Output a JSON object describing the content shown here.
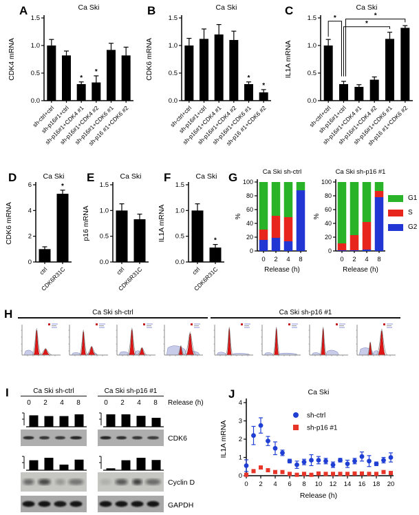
{
  "panels": {
    "A": {
      "letter": "A"
    },
    "B": {
      "letter": "B"
    },
    "C": {
      "letter": "C"
    },
    "D": {
      "letter": "D"
    },
    "E": {
      "letter": "E"
    },
    "F": {
      "letter": "F"
    },
    "G": {
      "letter": "G",
      "legend": [
        {
          "label": "G1",
          "color": "#29b329"
        },
        {
          "label": "S",
          "color": "#e8251d"
        },
        {
          "label": "G2",
          "color": "#2236d4"
        }
      ]
    },
    "H": {
      "letter": "H",
      "groups": [
        {
          "title": "Ca Ski sh-ctrl",
          "plots": [
            {
              "lav": [
                [
                  0.02,
                  0.3,
                  0.2
                ]
              ],
              "peaks": [
                [
                  0.37,
                  0.09,
                  0.9
                ],
                [
                  0.62,
                  0.14,
                  0.22
                ]
              ]
            },
            {
              "lav": [
                [
                  0.02,
                  0.3,
                  0.1
                ],
                [
                  0.45,
                  0.75,
                  0.1
                ]
              ],
              "peaks": [
                [
                  0.35,
                  0.08,
                  0.85
                ],
                [
                  0.58,
                  0.12,
                  0.3
                ]
              ]
            },
            {
              "lav": [
                [
                  0.02,
                  0.32,
                  0.14
                ],
                [
                  0.45,
                  0.66,
                  0.18
                ]
              ],
              "peaks": [
                [
                  0.38,
                  0.09,
                  0.92
                ],
                [
                  0.66,
                  0.11,
                  0.26
                ]
              ]
            },
            {
              "lav": [
                [
                  0.02,
                  0.58,
                  0.38
                ],
                [
                  0.58,
                  0.95,
                  0.16
                ]
              ],
              "peaks": [
                [
                  0.42,
                  0.07,
                  0.32
                ],
                [
                  0.68,
                  0.12,
                  0.78
                ]
              ]
            }
          ]
        },
        {
          "title": "Ca Ski sh-p16 #1",
          "plots": [
            {
              "lav": [
                [
                  0.02,
                  0.3,
                  0.12
                ],
                [
                  0.45,
                  0.95,
                  0.07
                ]
              ],
              "peaks": [
                [
                  0.37,
                  0.07,
                  0.95
                ]
              ]
            },
            {
              "lav": [
                [
                  0.02,
                  0.28,
                  0.1
                ],
                [
                  0.42,
                  0.95,
                  0.08
                ]
              ],
              "peaks": [
                [
                  0.36,
                  0.07,
                  0.95
                ]
              ]
            },
            {
              "lav": [
                [
                  0.02,
                  0.28,
                  0.1
                ],
                [
                  0.42,
                  0.78,
                  0.2
                ]
              ],
              "peaks": [
                [
                  0.34,
                  0.07,
                  0.95
                ]
              ]
            },
            {
              "lav": [
                [
                  0.02,
                  0.42,
                  0.3
                ],
                [
                  0.4,
                  0.62,
                  0.18
                ]
              ],
              "peaks": [
                [
                  0.33,
                  0.06,
                  0.45
                ],
                [
                  0.65,
                  0.11,
                  0.88
                ]
              ]
            }
          ]
        }
      ]
    },
    "I": {
      "letter": "I",
      "release_label": "Release (h)",
      "groups": [
        {
          "title": "Ca Ski sh-ctrl",
          "lanes": [
            "0",
            "2",
            "4",
            "8"
          ]
        },
        {
          "title": "Ca Ski sh-p16 #1",
          "lanes": [
            "0",
            "2",
            "4",
            "8"
          ]
        }
      ],
      "rows": [
        {
          "name": "CDK6"
        },
        {
          "name": "Cyclin D"
        },
        {
          "name": "GAPDH"
        }
      ],
      "mini": {
        "cdk6": [
          [
            0.92,
            0.86,
            0.86,
            1.0
          ],
          [
            1.0,
            1.0,
            0.88,
            0.72
          ]
        ],
        "cyclind": [
          [
            0.8,
            1.0,
            0.45,
            0.85
          ],
          [
            0.15,
            0.8,
            1.0,
            0.82
          ]
        ]
      },
      "blots": {
        "cdk6": {
          "bg": "#aeaeae",
          "blur": "b1",
          "bh": 2.4,
          "widths": [
            8,
            7.5,
            7.5,
            8.5
          ],
          "bands": [
            [
              0.8,
              0.75,
              0.72,
              0.85
            ],
            [
              0.85,
              0.8,
              0.75,
              0.7
            ]
          ]
        },
        "cyclind": {
          "bg": "#c6c6c2",
          "blur": "b3",
          "bh": 4.5,
          "widths": [
            8,
            9,
            7,
            11
          ],
          "bands": [
            [
              0.5,
              0.7,
              0.25,
              0.45
            ],
            [
              0.12,
              0.6,
              0.75,
              0.5
            ]
          ]
        },
        "gapdh": {
          "bg": "#a8a8a8",
          "blur": "b2",
          "bh": 4.2,
          "widths": [
            9,
            9,
            9,
            9
          ],
          "bands": [
            [
              0.95,
              0.95,
              0.92,
              0.95
            ],
            [
              0.95,
              0.95,
              0.95,
              0.95
            ]
          ]
        }
      }
    },
    "J": {
      "letter": "J"
    }
  },
  "chart_data": [
    {
      "id": "A",
      "type": "bar",
      "title": "Ca Ski",
      "ylabel": "CDK4 mRNA",
      "ylim": [
        0,
        1.5
      ],
      "ytick_vals": [
        0,
        0.5,
        1,
        1.5
      ],
      "ytick_labels": [
        "0.0",
        "0.5",
        "1.0",
        "1.5"
      ],
      "categories": [
        "sh-ctrl+ctrl",
        "sh-p16#1+ctrl",
        "sh-p16#1+CDK4 #1",
        "sh-p16#1+CDK4 #2",
        "sh-p16#1+CDK6 #1",
        "sh-p16 #1+CDK6 #2"
      ],
      "values": [
        1.0,
        0.82,
        0.3,
        0.33,
        0.92,
        0.82
      ],
      "errors": [
        0.11,
        0.08,
        0.04,
        0.12,
        0.12,
        0.15
      ],
      "stars": [
        2,
        3
      ]
    },
    {
      "id": "B",
      "type": "bar",
      "title": "Ca Ski",
      "ylabel": "CDK6 mRNA",
      "ylim": [
        0,
        1.5
      ],
      "ytick_vals": [
        0,
        0.5,
        1,
        1.5
      ],
      "ytick_labels": [
        "0.0",
        "0.5",
        "1.0",
        "1.5"
      ],
      "categories": [
        "sh-ctrl+ctrl",
        "sh-p16#1+ctrl",
        "sh-p16#1+CDK4 #1",
        "sh-p16#1+CDK4 #2",
        "sh-p16#1+CDK6 #1",
        "sh-p16 #1+CDK6 #2"
      ],
      "values": [
        1.0,
        1.12,
        1.2,
        1.1,
        0.3,
        0.15
      ],
      "errors": [
        0.13,
        0.18,
        0.18,
        0.16,
        0.04,
        0.05
      ],
      "stars": [
        4,
        5
      ]
    },
    {
      "id": "C",
      "type": "bar",
      "title": "Ca Ski",
      "ylabel": "IL1A mRNA",
      "ylim": [
        0,
        1.5
      ],
      "ytick_vals": [
        0,
        0.5,
        1,
        1.5
      ],
      "ytick_labels": [
        "0.0",
        "0.5",
        "1.0",
        "1.5"
      ],
      "categories": [
        "sh-ctrl+ctrl",
        "sh-p16#1+ctrl",
        "sh-p16#1+CDK4 #1",
        "sh-p16#1+CDK4 #2",
        "sh-p16#1+CDK6 #1",
        "sh-p16 #1+CDK6 #2"
      ],
      "values": [
        1.0,
        0.3,
        0.25,
        0.38,
        1.12,
        1.32
      ],
      "errors": [
        0.11,
        0.05,
        0.04,
        0.05,
        0.12,
        0.04
      ],
      "stars": [],
      "brackets": [
        {
          "a": 0,
          "b": 1,
          "y": 1.44,
          "aDrop": 1.16,
          "bDrop": 0.44,
          "aOff": 0,
          "bOff": -3
        },
        {
          "a": 1,
          "b": 4,
          "y": 1.34,
          "aDrop": 0.44,
          "bDrop": 1.3,
          "aOff": 0,
          "bOff": 0
        },
        {
          "a": 1,
          "b": 5,
          "y": 1.48,
          "aDrop": 0.44,
          "bDrop": 1.42,
          "aOff": 3,
          "bOff": 0
        }
      ]
    },
    {
      "id": "D",
      "type": "bar",
      "title": "Ca Ski",
      "ylabel": "CDK6 mRNA",
      "ylim": [
        0,
        6
      ],
      "ytick_vals": [
        0,
        2,
        4,
        6
      ],
      "ytick_labels": [
        "0",
        "2",
        "4",
        "6"
      ],
      "categories": [
        "ctrl",
        "CDK6R31C"
      ],
      "values": [
        1.0,
        5.3
      ],
      "errors": [
        0.18,
        0.28
      ],
      "stars": [
        1
      ]
    },
    {
      "id": "E",
      "type": "bar",
      "title": "Ca Ski",
      "ylabel": "p16 mRNA",
      "ylim": [
        0,
        1.5
      ],
      "ytick_vals": [
        0,
        0.5,
        1,
        1.5
      ],
      "ytick_labels": [
        "0.0",
        "0.5",
        "1.0",
        "1.5"
      ],
      "categories": [
        "ctrl",
        "CDK6R31C"
      ],
      "values": [
        1.0,
        0.83
      ],
      "errors": [
        0.13,
        0.1
      ],
      "stars": []
    },
    {
      "id": "F",
      "type": "bar",
      "title": "Ca Ski",
      "ylabel": "IL1A mRNA",
      "ylim": [
        0,
        1.5
      ],
      "ytick_vals": [
        0,
        0.5,
        1,
        1.5
      ],
      "ytick_labels": [
        "0.0",
        "0.5",
        "1.0",
        "1.5"
      ],
      "categories": [
        "ctrl",
        "CDK6R31C"
      ],
      "values": [
        1.0,
        0.28
      ],
      "errors": [
        0.13,
        0.06
      ],
      "stars": [
        1
      ]
    },
    {
      "id": "G-shctrl",
      "type": "stacked-bar",
      "title": "Ca Ski sh-ctrl",
      "ylabel": "%",
      "xlabel": "Release (h)",
      "ylim": [
        0,
        100
      ],
      "ytick_vals": [
        0,
        20,
        40,
        60,
        80,
        100
      ],
      "ytick_labels": [
        "0",
        "20",
        "40",
        "60",
        "80",
        "100"
      ],
      "categories": [
        "0",
        "2",
        "4",
        "8"
      ],
      "series": [
        {
          "name": "G2",
          "color": "#2236d4",
          "values": [
            16,
            19,
            14,
            88
          ]
        },
        {
          "name": "S",
          "color": "#e8251d",
          "values": [
            15,
            32,
            35,
            0
          ]
        },
        {
          "name": "G1",
          "color": "#29b329",
          "values": [
            69,
            49,
            51,
            12
          ]
        }
      ]
    },
    {
      "id": "G-shp16",
      "type": "stacked-bar",
      "title": "Ca Ski sh-p16 #1",
      "ylabel": "%",
      "xlabel": "Release (h)",
      "ylim": [
        0,
        100
      ],
      "ytick_vals": [
        0,
        20,
        40,
        60,
        80,
        100
      ],
      "ytick_labels": [
        "0",
        "20",
        "40",
        "60",
        "80",
        "100"
      ],
      "categories": [
        "0",
        "2",
        "4",
        "8"
      ],
      "series": [
        {
          "name": "G2",
          "color": "#2236d4",
          "values": [
            1,
            1,
            2,
            78
          ]
        },
        {
          "name": "S",
          "color": "#e8251d",
          "values": [
            10,
            22,
            40,
            9
          ]
        },
        {
          "name": "G1",
          "color": "#29b329",
          "values": [
            89,
            77,
            58,
            13
          ]
        }
      ]
    },
    {
      "id": "J",
      "type": "scatter",
      "title": "Ca Ski",
      "ylabel": "IL1A mRNA",
      "xlabel": "Release (h)",
      "ylim": [
        0,
        4
      ],
      "xlim": [
        0,
        20
      ],
      "ytick_vals": [
        0,
        1,
        2,
        3,
        4
      ],
      "ytick_labels": [
        "0",
        "1",
        "2",
        "3",
        "4"
      ],
      "xtick_vals": [
        0,
        2,
        4,
        6,
        8,
        10,
        12,
        14,
        16,
        18,
        20
      ],
      "xtick_labels": [
        "0",
        "2",
        "4",
        "6",
        "8",
        "10",
        "12",
        "14",
        "16",
        "18",
        "20"
      ],
      "x": [
        0,
        1,
        2,
        3,
        4,
        5,
        6,
        7,
        8,
        9,
        10,
        11,
        12,
        13,
        14,
        15,
        16,
        17,
        18,
        19,
        20
      ],
      "series": [
        {
          "name": "sh-ctrl",
          "marker": "circle",
          "color": "#1f3fd4",
          "y": [
            0.55,
            2.2,
            2.75,
            1.9,
            1.5,
            1.25,
            0.8,
            0.6,
            0.75,
            0.85,
            0.85,
            0.8,
            0.6,
            0.85,
            0.65,
            0.8,
            1.05,
            0.8,
            0.65,
            0.85,
            1.0
          ],
          "err": [
            0.32,
            0.5,
            0.42,
            0.25,
            0.35,
            0.15,
            0.1,
            0.2,
            0.15,
            0.3,
            0.2,
            0.15,
            0.15,
            0.1,
            0.2,
            0.15,
            0.25,
            0.3,
            0.1,
            0.15,
            0.25
          ]
        },
        {
          "name": "sh-p16 #1",
          "marker": "square",
          "color": "#e8352a",
          "y": [
            0.05,
            0.25,
            0.45,
            0.3,
            0.2,
            0.2,
            0.1,
            0.05,
            0.1,
            0.05,
            0.12,
            0.1,
            0.1,
            0.1,
            0.1,
            0.12,
            0.12,
            0.1,
            0.1,
            0.2,
            0.15
          ],
          "err": [
            0.03,
            0.05,
            0.06,
            0.05,
            0.04,
            0.04,
            0.03,
            0.02,
            0.03,
            0.02,
            0.03,
            0.03,
            0.03,
            0.03,
            0.03,
            0.03,
            0.03,
            0.03,
            0.03,
            0.04,
            0.04
          ]
        }
      ]
    }
  ]
}
